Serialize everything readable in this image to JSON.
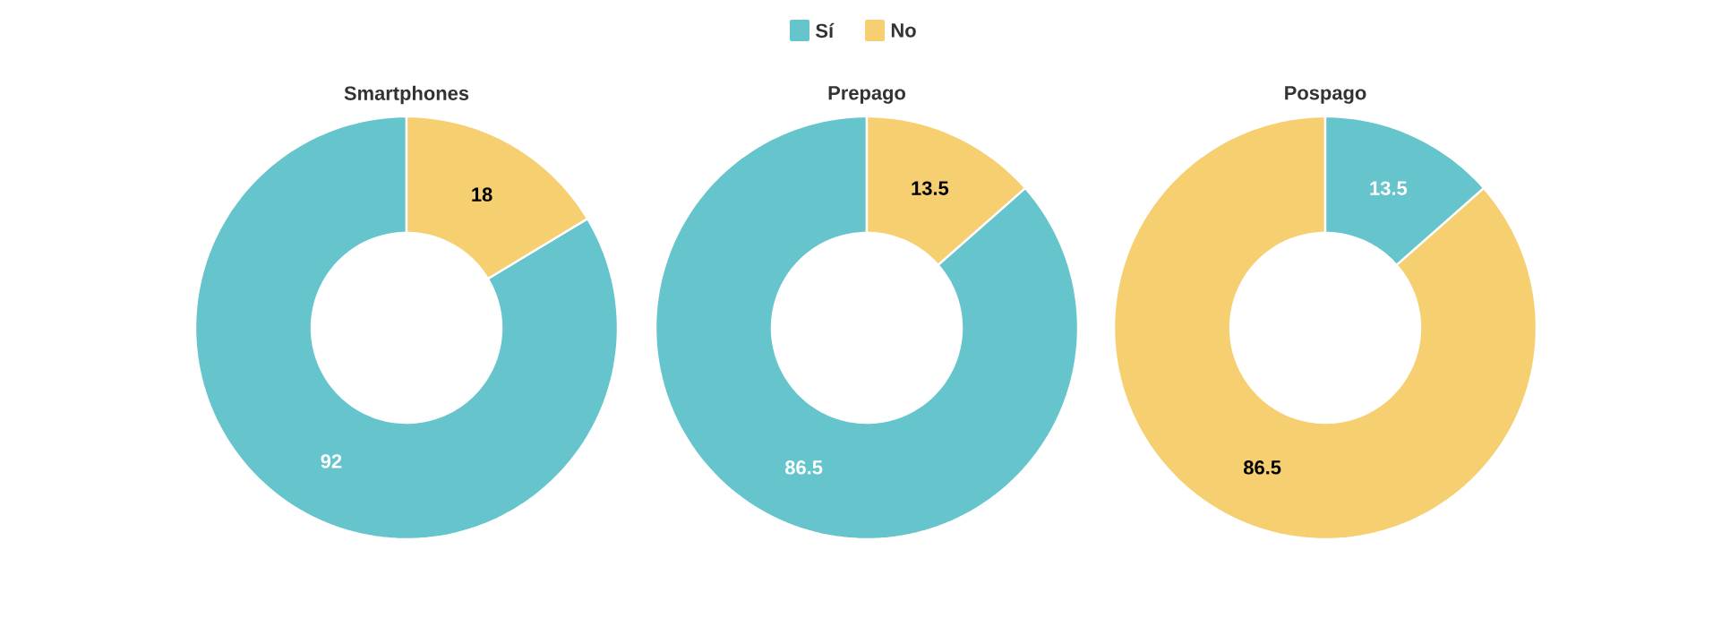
{
  "chart_data": [
    {
      "type": "donut",
      "title": "Smartphones",
      "categories": [
        null,
        null
      ],
      "values": [
        92,
        18
      ],
      "colors": [
        "#66c5cc",
        "#f6cf71"
      ],
      "data_labels": true
    },
    {
      "type": "donut",
      "title": "Prepago",
      "categories": [
        "Sí",
        "No"
      ],
      "values": [
        86.5,
        13.5
      ],
      "colors": [
        "#66c5cc",
        "#f6cf71"
      ],
      "data_labels": true,
      "legend": "top"
    },
    {
      "type": "donut",
      "title": "Pospago",
      "categories": [
        null,
        null
      ],
      "values": [
        86.5,
        13.5
      ],
      "colors": [
        "#f6cf71",
        "#66c5cc"
      ],
      "data_labels": true
    }
  ]
}
